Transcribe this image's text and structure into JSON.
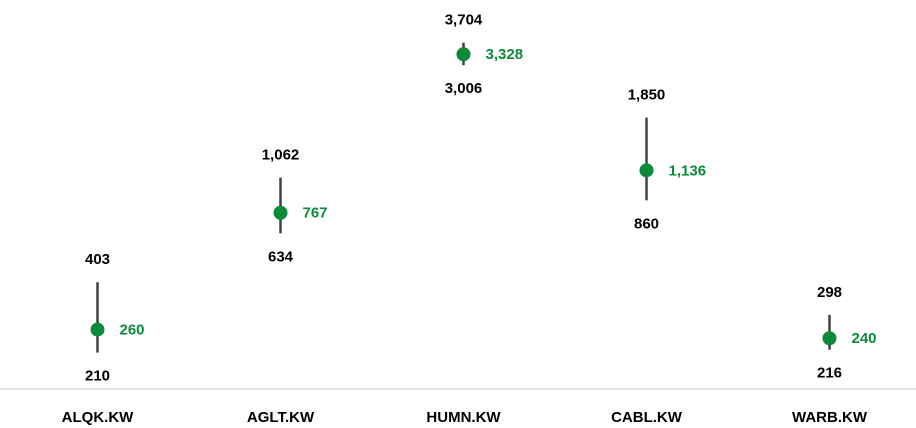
{
  "chart_data": {
    "type": "range",
    "categories": [
      "ALQK.KW",
      "AGLT.KW",
      "HUMN.KW",
      "CABL.KW",
      "WARB.KW"
    ],
    "series": [
      {
        "color": "#000000",
        "values": [
          403,
          1062,
          3704,
          1850,
          298
        ],
        "value_labels": [
          "403",
          "1,062",
          "3,704",
          "1,850",
          "298"
        ]
      },
      {
        "color": "#000000",
        "values": [
          210,
          634,
          3006,
          860,
          216
        ],
        "value_labels": [
          "210",
          "634",
          "3,006",
          "860",
          "216"
        ]
      },
      {
        "color": "#0a8a3a",
        "values": [
          260,
          767,
          3328,
          1136,
          240
        ],
        "value_labels": [
          "260",
          "767",
          "3,328",
          "1,136",
          "240"
        ]
      }
    ],
    "range_color": "#404040",
    "ylim": [
      150,
      5500
    ],
    "log_scale": true
  }
}
